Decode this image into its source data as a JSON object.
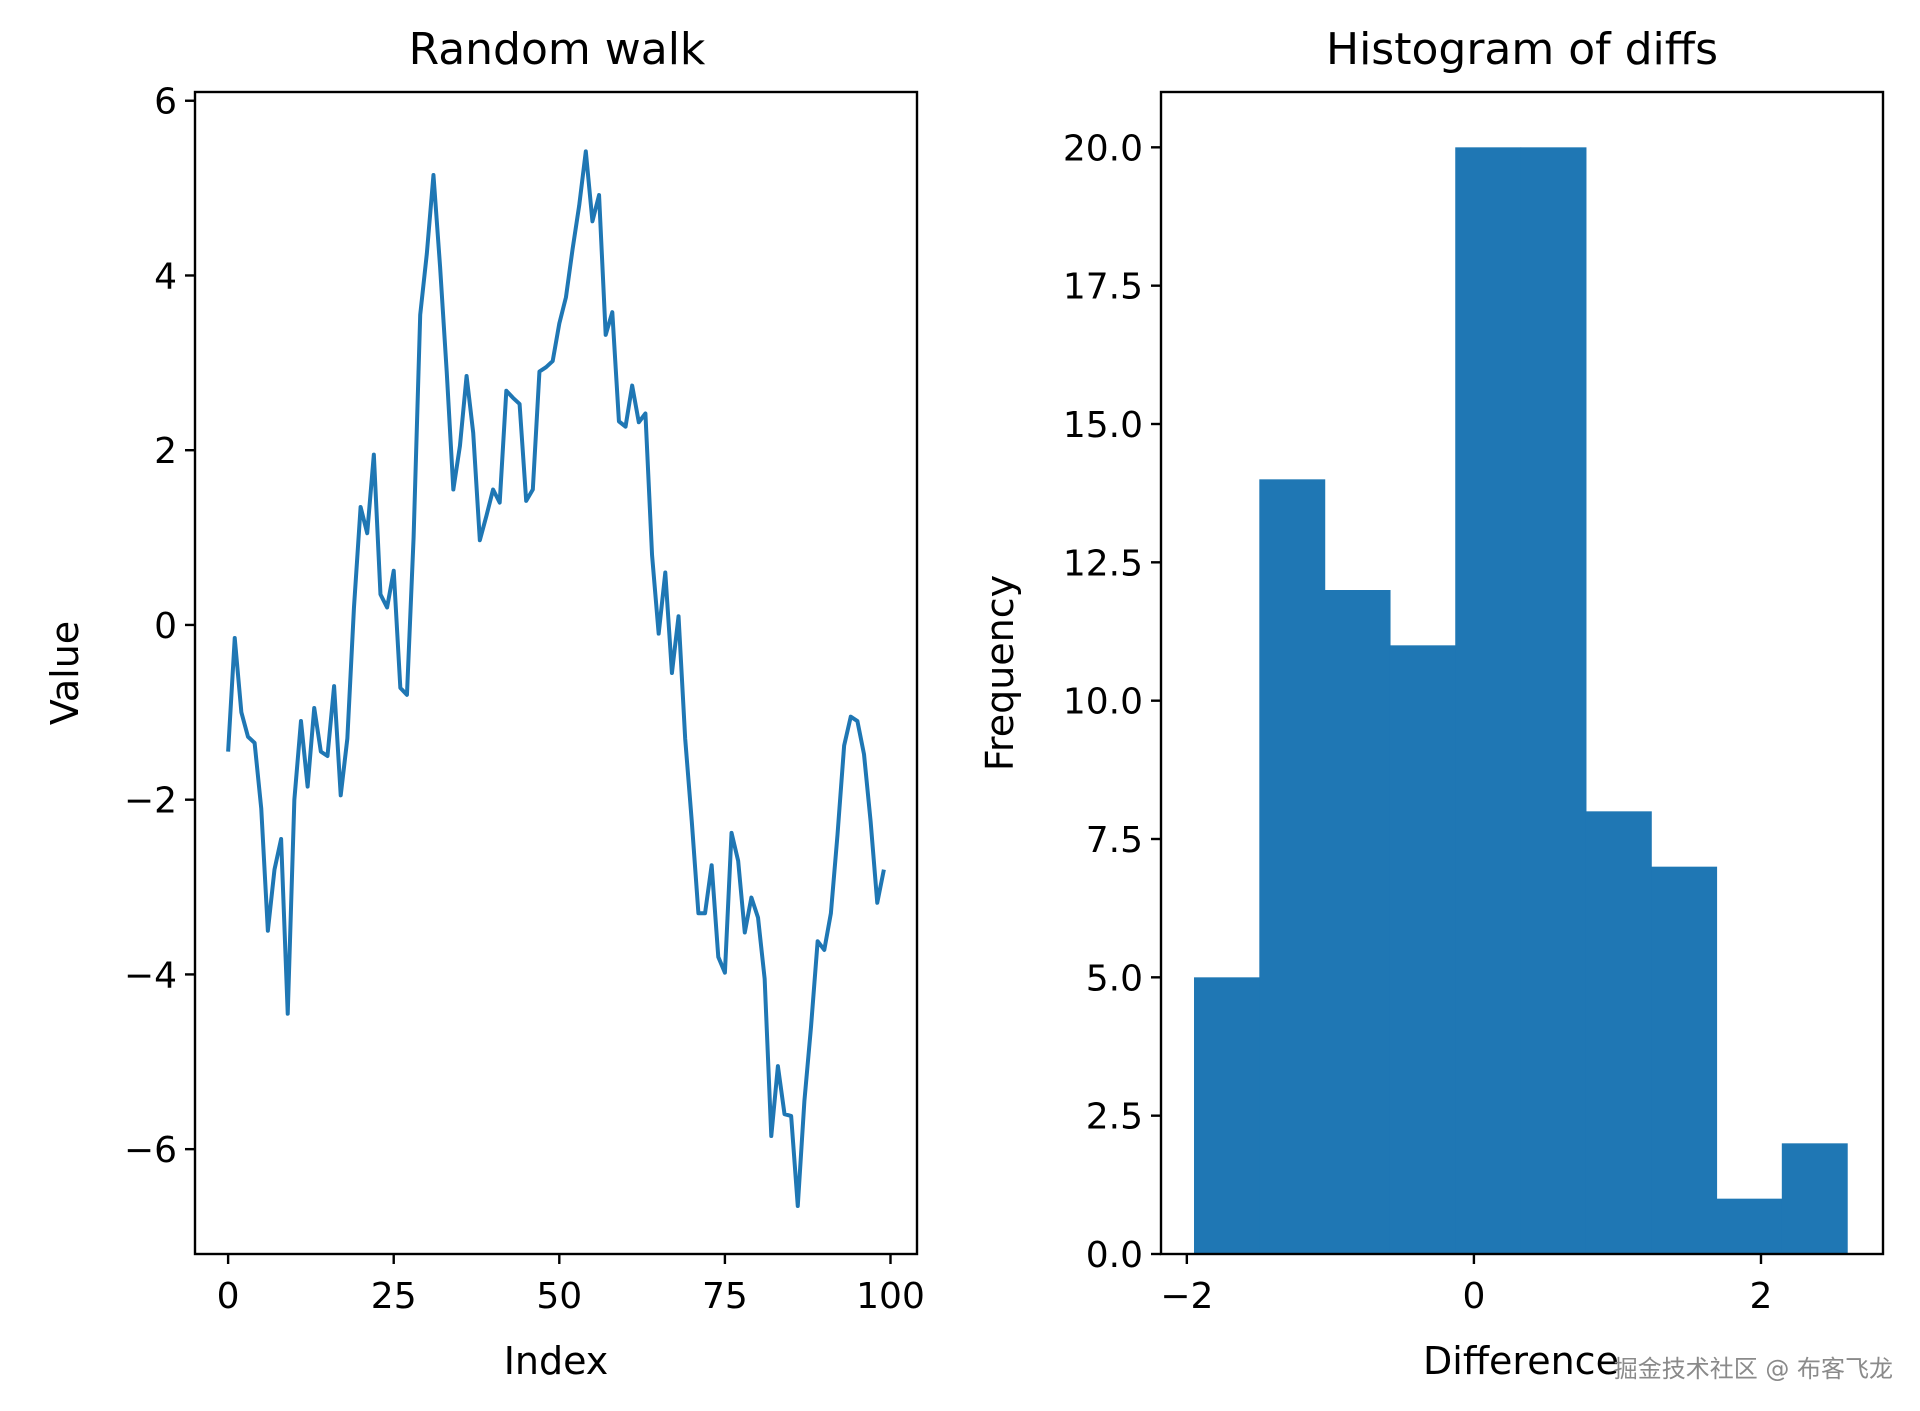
{
  "chart_data": [
    {
      "type": "line",
      "title": "Random walk",
      "xlabel": "Index",
      "ylabel": "Value",
      "xlim": [
        -5,
        104
      ],
      "ylim": [
        -7.2,
        6.1
      ],
      "xticks": [
        0,
        25,
        50,
        75,
        100
      ],
      "yticks": [
        -6,
        -4,
        -2,
        0,
        2,
        4,
        6
      ],
      "xtick_labels": [
        "0",
        "25",
        "50",
        "75",
        "100"
      ],
      "ytick_labels": [
        "−6",
        "−4",
        "−2",
        "0",
        "2",
        "4",
        "6"
      ],
      "series": [
        {
          "color": "#1f77b4",
          "x": [
            0,
            1,
            2,
            3,
            4,
            5,
            6,
            7,
            8,
            9,
            10,
            11,
            12,
            13,
            14,
            15,
            16,
            17,
            18,
            19,
            20,
            21,
            22,
            23,
            24,
            25,
            26,
            27,
            28,
            29,
            30,
            31,
            32,
            33,
            34,
            35,
            36,
            37,
            38,
            39,
            40,
            41,
            42,
            43,
            44,
            45,
            46,
            47,
            48,
            49,
            50,
            51,
            52,
            53,
            54,
            55,
            56,
            57,
            58,
            59,
            60,
            61,
            62,
            63,
            64,
            65,
            66,
            67,
            68,
            69,
            70,
            71,
            72,
            73,
            74,
            75,
            76,
            77,
            78,
            79,
            80,
            81,
            82,
            83,
            84,
            85,
            86,
            87,
            88,
            89,
            90,
            91,
            92,
            93,
            94,
            95,
            96,
            97,
            98,
            99
          ],
          "y": [
            -1.45,
            -0.15,
            -1.0,
            -1.28,
            -1.35,
            -2.1,
            -3.5,
            -2.8,
            -2.45,
            -4.45,
            -2.0,
            -1.1,
            -1.85,
            -0.95,
            -1.45,
            -1.5,
            -0.7,
            -1.95,
            -1.3,
            0.2,
            1.35,
            1.05,
            1.95,
            0.35,
            0.2,
            0.62,
            -0.72,
            -0.8,
            1.0,
            3.55,
            4.25,
            5.15,
            4.1,
            2.9,
            1.55,
            2.05,
            2.85,
            2.2,
            0.97,
            1.25,
            1.55,
            1.4,
            2.68,
            2.6,
            2.53,
            1.42,
            1.55,
            2.9,
            2.95,
            3.02,
            3.45,
            3.75,
            4.3,
            4.8,
            5.42,
            4.62,
            4.92,
            3.32,
            3.58,
            2.33,
            2.27,
            2.74,
            2.32,
            2.42,
            0.8,
            -0.1,
            0.6,
            -0.55,
            0.1,
            -1.3,
            -2.25,
            -3.3,
            -3.3,
            -2.75,
            -3.8,
            -3.98,
            -2.38,
            -2.7,
            -3.52,
            -3.12,
            -3.35,
            -4.05,
            -5.85,
            -5.05,
            -5.6,
            -5.62,
            -6.65,
            -5.45,
            -4.6,
            -3.62,
            -3.72,
            -3.3,
            -2.4,
            -1.38,
            -1.05,
            -1.1,
            -1.48,
            -2.25,
            -3.18,
            -2.8
          ]
        }
      ]
    },
    {
      "type": "histogram",
      "title": "Histogram of diffs",
      "xlabel": "Difference",
      "ylabel": "Frequency",
      "xlim": [
        -2.18,
        2.85
      ],
      "ylim": [
        0,
        21
      ],
      "xticks": [
        -2,
        0,
        2
      ],
      "yticks": [
        0,
        2.5,
        5,
        7.5,
        10,
        12.5,
        15,
        17.5,
        20
      ],
      "xtick_labels": [
        "−2",
        "0",
        "2"
      ],
      "ytick_labels": [
        "0.0",
        "2.5",
        "5.0",
        "7.5",
        "10.0",
        "12.5",
        "15.0",
        "17.5",
        "20.0"
      ],
      "bin_edges": [
        -1.95,
        -1.495,
        -1.04,
        -0.585,
        -0.13,
        0.325,
        0.78,
        1.235,
        1.69,
        2.145,
        2.6
      ],
      "counts": [
        5,
        14,
        12,
        11,
        20,
        20,
        8,
        7,
        1,
        2
      ],
      "color": "#1f77b4"
    }
  ],
  "watermark": "掘金技术社区 @ 布客飞龙"
}
